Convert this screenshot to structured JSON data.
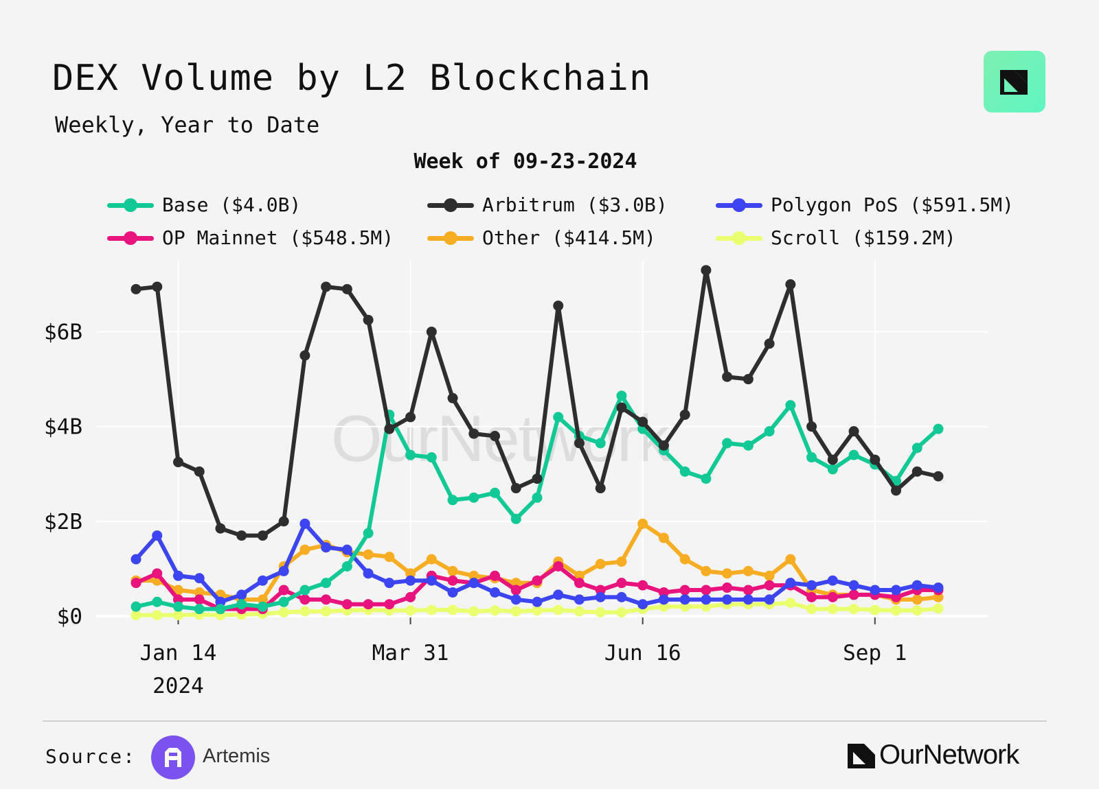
{
  "header": {
    "title": "DEX Volume by L2 Blockchain",
    "subtitle": "Weekly, Year to Date"
  },
  "footer": {
    "source_label": "Source:",
    "source_name": "Artemis",
    "brand_name": "OurNetwork"
  },
  "watermark": "OurNetwork",
  "colors": {
    "background": "#f4f4f4",
    "grid": "#ffffff",
    "badge": "#6ff0b8"
  },
  "chart_data": {
    "type": "line",
    "title": "Week of 09-23-2024",
    "xlabel": "",
    "ylabel": "",
    "ylim": [
      0,
      7.5
    ],
    "y_ticks": [
      0,
      2,
      4,
      6
    ],
    "y_tick_labels": [
      "$0",
      "$2B",
      "$4B",
      "$6B"
    ],
    "x_ticks": [
      2,
      13,
      24,
      35
    ],
    "x_tick_labels": [
      "Jan 14",
      "Mar 31",
      "Jun 16",
      "Sep 1"
    ],
    "x_tick_sublabel": "2024",
    "x": [
      "01-01",
      "01-08",
      "01-15",
      "01-22",
      "01-29",
      "02-05",
      "02-12",
      "02-19",
      "02-26",
      "03-04",
      "03-11",
      "03-18",
      "03-25",
      "04-01",
      "04-08",
      "04-15",
      "04-22",
      "04-29",
      "05-06",
      "05-13",
      "05-20",
      "05-27",
      "06-03",
      "06-10",
      "06-17",
      "06-24",
      "07-01",
      "07-08",
      "07-15",
      "07-22",
      "07-29",
      "08-05",
      "08-12",
      "08-19",
      "08-26",
      "09-02",
      "09-09",
      "09-16",
      "09-23"
    ],
    "legend_position": "top",
    "series": [
      {
        "name": "Base",
        "label": "Base ($4.0B)",
        "color": "#12c996",
        "values": [
          0.2,
          0.3,
          0.2,
          0.15,
          0.15,
          0.25,
          0.2,
          0.3,
          0.55,
          0.7,
          1.05,
          1.75,
          4.25,
          3.4,
          3.35,
          2.45,
          2.5,
          2.6,
          2.05,
          2.5,
          4.2,
          3.8,
          3.65,
          4.65,
          3.95,
          3.5,
          3.05,
          2.9,
          3.65,
          3.6,
          3.9,
          4.45,
          3.35,
          3.1,
          3.4,
          3.2,
          2.85,
          3.55,
          3.95
        ]
      },
      {
        "name": "Arbitrum",
        "label": "Arbitrum ($3.0B)",
        "color": "#2e2e2e",
        "values": [
          6.9,
          6.95,
          3.25,
          3.05,
          1.85,
          1.7,
          1.7,
          2.0,
          5.5,
          6.95,
          6.9,
          6.25,
          3.95,
          4.2,
          6.0,
          4.6,
          3.85,
          3.8,
          2.7,
          2.9,
          6.55,
          3.65,
          2.7,
          4.4,
          4.1,
          3.6,
          4.25,
          7.3,
          5.05,
          5.0,
          5.75,
          7.0,
          4.0,
          3.3,
          3.9,
          3.3,
          2.65,
          3.05,
          2.95
        ]
      },
      {
        "name": "Polygon PoS",
        "label": "Polygon PoS ($591.5M)",
        "color": "#3d45f2",
        "values": [
          1.2,
          1.7,
          0.85,
          0.8,
          0.3,
          0.45,
          0.75,
          0.95,
          1.95,
          1.45,
          1.4,
          0.9,
          0.7,
          0.75,
          0.75,
          0.5,
          0.7,
          0.5,
          0.35,
          0.3,
          0.45,
          0.35,
          0.4,
          0.4,
          0.25,
          0.35,
          0.35,
          0.35,
          0.35,
          0.35,
          0.35,
          0.7,
          0.65,
          0.75,
          0.65,
          0.55,
          0.55,
          0.65,
          0.6
        ]
      },
      {
        "name": "OP Mainnet",
        "label": "OP Mainnet ($548.5M)",
        "color": "#e8137c",
        "values": [
          0.7,
          0.9,
          0.35,
          0.35,
          0.15,
          0.15,
          0.15,
          0.55,
          0.35,
          0.35,
          0.25,
          0.25,
          0.25,
          0.4,
          0.85,
          0.75,
          0.7,
          0.85,
          0.55,
          0.75,
          1.05,
          0.7,
          0.55,
          0.7,
          0.65,
          0.5,
          0.55,
          0.55,
          0.6,
          0.55,
          0.65,
          0.65,
          0.4,
          0.4,
          0.45,
          0.45,
          0.4,
          0.55,
          0.55
        ]
      },
      {
        "name": "Other",
        "label": "Other ($414.5M)",
        "color": "#f7ad23",
        "values": [
          0.75,
          0.75,
          0.55,
          0.5,
          0.45,
          0.35,
          0.35,
          1.05,
          1.4,
          1.5,
          1.35,
          1.3,
          1.25,
          0.9,
          1.2,
          0.95,
          0.85,
          0.8,
          0.7,
          0.7,
          1.15,
          0.85,
          1.1,
          1.15,
          1.95,
          1.65,
          1.2,
          0.95,
          0.9,
          0.95,
          0.85,
          1.2,
          0.55,
          0.45,
          0.45,
          0.45,
          0.35,
          0.35,
          0.4
        ]
      },
      {
        "name": "Scroll",
        "label": "Scroll ($159.2M)",
        "color": "#eaff6e",
        "values": [
          0.02,
          0.02,
          0.02,
          0.03,
          0.02,
          0.03,
          0.05,
          0.08,
          0.1,
          0.1,
          0.12,
          0.13,
          0.12,
          0.12,
          0.13,
          0.13,
          0.1,
          0.12,
          0.1,
          0.12,
          0.13,
          0.1,
          0.08,
          0.08,
          0.15,
          0.2,
          0.2,
          0.2,
          0.25,
          0.25,
          0.25,
          0.28,
          0.15,
          0.15,
          0.15,
          0.13,
          0.12,
          0.12,
          0.16
        ]
      }
    ]
  }
}
